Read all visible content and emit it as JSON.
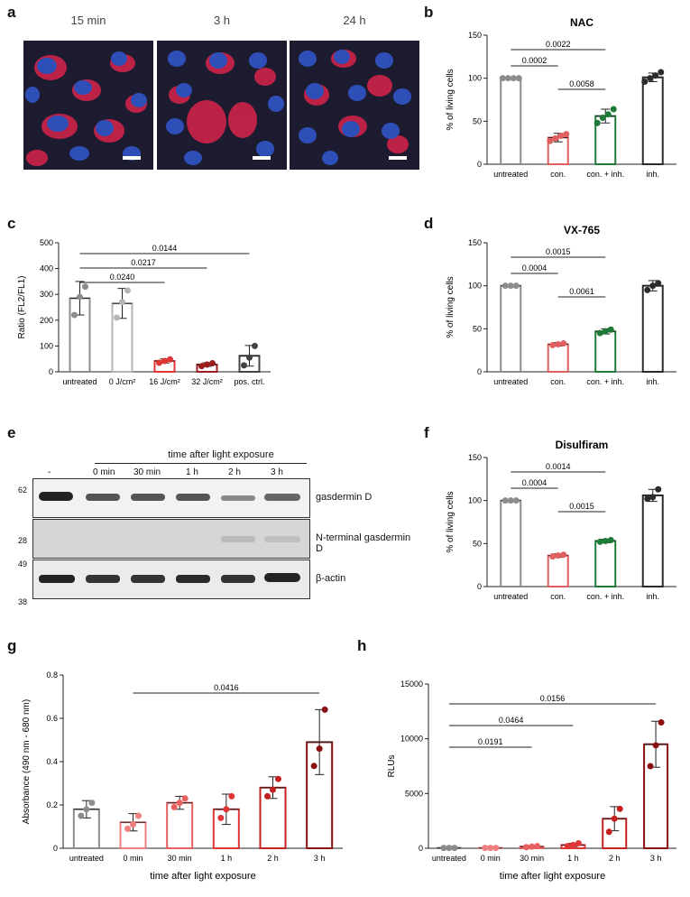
{
  "panel_labels": {
    "a": "a",
    "b": "b",
    "c": "c",
    "d": "d",
    "e": "e",
    "f": "f",
    "g": "g",
    "h": "h"
  },
  "panel_a": {
    "timepoints": [
      "15 min",
      "3 h",
      "24 h"
    ]
  },
  "chart_data": [
    {
      "id": "b",
      "type": "bar",
      "title": "NAC",
      "ylabel": "% of living cells",
      "categories": [
        "untreated",
        "con.",
        "con. + inh.",
        "inh."
      ],
      "values": [
        100,
        31,
        56,
        101
      ],
      "error": [
        0,
        5,
        8,
        5
      ],
      "points": [
        [
          100,
          100,
          100,
          100
        ],
        [
          27,
          30,
          33,
          35
        ],
        [
          48,
          54,
          58,
          64
        ],
        [
          96,
          100,
          103,
          107
        ]
      ],
      "colors": [
        "#8c8c8c",
        "#e06060",
        "#1f7a3a",
        "#2b2b2b"
      ],
      "ylim": [
        0,
        150
      ],
      "yticks": [
        0,
        50,
        100,
        150
      ],
      "comparisons": [
        {
          "label": "0.0002",
          "from": 0,
          "to": 1
        },
        {
          "label": "0.0022",
          "from": 0,
          "to": 2
        },
        {
          "label": "0.0058",
          "from": 1,
          "to": 2
        }
      ]
    },
    {
      "id": "c",
      "type": "bar",
      "ylabel": "Ratio (FL2/FL1)",
      "categories": [
        "untreated",
        "0 J/cm²",
        "16 J/cm²",
        "32 J/cm²",
        "pos. ctrl."
      ],
      "values": [
        285,
        265,
        42,
        28,
        62
      ],
      "error": [
        65,
        58,
        8,
        7,
        40
      ],
      "points": [
        [
          220,
          290,
          330
        ],
        [
          210,
          270,
          315
        ],
        [
          35,
          42,
          48
        ],
        [
          22,
          28,
          33
        ],
        [
          25,
          55,
          100
        ]
      ],
      "colors": [
        "#8c8c8c",
        "#b5b5b5",
        "#e03535",
        "#9b1c1c",
        "#444444"
      ],
      "ylim": [
        0,
        500
      ],
      "yticks": [
        0,
        100,
        200,
        300,
        400,
        500
      ],
      "comparisons": [
        {
          "label": "0.0240",
          "from": 0,
          "to": 2
        },
        {
          "label": "0.0217",
          "from": 0,
          "to": 3
        },
        {
          "label": "0.0144",
          "from": 0,
          "to": 4
        }
      ]
    },
    {
      "id": "d",
      "type": "bar",
      "title": "VX-765",
      "ylabel": "% of living cells",
      "categories": [
        "untreated",
        "con.",
        "con. + inh.",
        "inh."
      ],
      "values": [
        100,
        32,
        47,
        100
      ],
      "error": [
        0,
        2,
        3,
        6
      ],
      "points": [
        [
          100,
          100,
          100
        ],
        [
          31,
          32,
          33
        ],
        [
          45,
          47,
          49
        ],
        [
          95,
          100,
          103
        ]
      ],
      "colors": [
        "#8c8c8c",
        "#e06060",
        "#1f7a3a",
        "#2b2b2b"
      ],
      "ylim": [
        0,
        150
      ],
      "yticks": [
        0,
        50,
        100,
        150
      ],
      "comparisons": [
        {
          "label": "0.0004",
          "from": 0,
          "to": 1
        },
        {
          "label": "0.0015",
          "from": 0,
          "to": 2
        },
        {
          "label": "0.0061",
          "from": 1,
          "to": 2
        }
      ]
    },
    {
      "id": "f",
      "type": "bar",
      "title": "Disulfiram",
      "ylabel": "% of living cells",
      "categories": [
        "untreated",
        "con.",
        "con. + inh.",
        "inh."
      ],
      "values": [
        100,
        36,
        53,
        106
      ],
      "error": [
        0,
        2,
        2,
        7
      ],
      "points": [
        [
          100,
          100,
          100
        ],
        [
          35,
          36,
          37
        ],
        [
          52,
          53,
          54
        ],
        [
          102,
          104,
          113
        ]
      ],
      "colors": [
        "#8c8c8c",
        "#e06060",
        "#1f7a3a",
        "#2b2b2b"
      ],
      "ylim": [
        0,
        150
      ],
      "yticks": [
        0,
        50,
        100,
        150
      ],
      "comparisons": [
        {
          "label": "0.0004",
          "from": 0,
          "to": 1
        },
        {
          "label": "0.0014",
          "from": 0,
          "to": 2
        },
        {
          "label": "0.0015",
          "from": 1,
          "to": 2
        }
      ]
    },
    {
      "id": "g",
      "type": "bar",
      "ylabel": "Absorbance (490 nm - 680 nm)",
      "xlabel": "time after light exposure",
      "categories": [
        "untreated",
        "0 min",
        "30 min",
        "1 h",
        "2 h",
        "3 h"
      ],
      "values": [
        0.18,
        0.12,
        0.21,
        0.18,
        0.28,
        0.49
      ],
      "error": [
        0.04,
        0.04,
        0.03,
        0.07,
        0.05,
        0.15
      ],
      "points": [
        [
          0.15,
          0.18,
          0.21
        ],
        [
          0.09,
          0.11,
          0.15
        ],
        [
          0.19,
          0.21,
          0.23
        ],
        [
          0.14,
          0.18,
          0.24
        ],
        [
          0.24,
          0.27,
          0.32
        ],
        [
          0.38,
          0.46,
          0.64
        ]
      ],
      "colors": [
        "#8c8c8c",
        "#f08080",
        "#e86060",
        "#e03535",
        "#c42020",
        "#8b1010"
      ],
      "ylim": [
        0,
        0.8
      ],
      "yticks": [
        0,
        0.2,
        0.4,
        0.6,
        0.8
      ],
      "yticklabels": [
        "0",
        "0.2",
        "0.4",
        "0.6",
        "0.8"
      ],
      "comparisons": [
        {
          "label": "0.0416",
          "from": 1,
          "to": 5
        }
      ]
    },
    {
      "id": "h",
      "type": "bar",
      "ylabel": "RLUs",
      "xlabel": "time after light exposure",
      "categories": [
        "untreated",
        "0 min",
        "30 min",
        "1 h",
        "2 h",
        "3 h"
      ],
      "values": [
        30,
        30,
        150,
        300,
        2700,
        9500
      ],
      "error": [
        0,
        0,
        80,
        150,
        1100,
        2100
      ],
      "points": [
        [
          30,
          30,
          30
        ],
        [
          30,
          30,
          30
        ],
        [
          100,
          150,
          200
        ],
        [
          200,
          300,
          450
        ],
        [
          1500,
          2700,
          3600
        ],
        [
          7500,
          9400,
          11500
        ]
      ],
      "colors": [
        "#8c8c8c",
        "#f08080",
        "#e86060",
        "#e03535",
        "#c42020",
        "#8b1010"
      ],
      "ylim": [
        0,
        15000
      ],
      "yticks": [
        0,
        5000,
        10000,
        15000
      ],
      "comparisons": [
        {
          "label": "0.0191",
          "from": 0,
          "to": 2
        },
        {
          "label": "0.0464",
          "from": 0,
          "to": 3
        },
        {
          "label": "0.0156",
          "from": 0,
          "to": 5
        }
      ]
    }
  ],
  "panel_e": {
    "header": "time after light exposure",
    "lanes": [
      "-",
      "0 min",
      "30 min",
      "1 h",
      "2 h",
      "3 h"
    ],
    "rows": [
      {
        "label": "gasdermin D",
        "marker_top": "62",
        "marker_bottom": ""
      },
      {
        "label": "N-terminal gasdermin D",
        "marker_top": "28",
        "marker_bottom": ""
      },
      {
        "label": "β-actin",
        "marker_top": "49",
        "marker_bottom": "38"
      }
    ]
  }
}
